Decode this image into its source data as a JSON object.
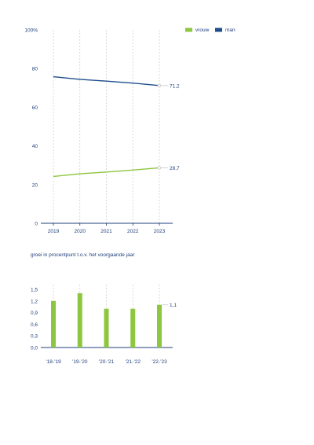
{
  "colors": {
    "vrouw": "#8dc63f",
    "man": "#1f4e8c",
    "text": "#1f3f7a",
    "grid": "#c8c8c8",
    "axis": "#1f3f7a"
  },
  "chart_data": [
    {
      "type": "line",
      "x": [
        "2019",
        "2020",
        "2021",
        "2022",
        "2023"
      ],
      "series": [
        {
          "name": "vrouw",
          "values": [
            24.2,
            25.6,
            26.5,
            27.5,
            28.7
          ]
        },
        {
          "name": "man",
          "values": [
            75.8,
            74.4,
            73.5,
            72.5,
            71.2
          ]
        }
      ],
      "y_ticks": [
        "0",
        "20",
        "40",
        "60",
        "80",
        "100%"
      ],
      "ylim": [
        0,
        100
      ],
      "end_labels": [
        "28,7",
        "71,2"
      ],
      "legend_position": "top-right",
      "grid": "vertical dashed"
    },
    {
      "type": "bar",
      "title": "groei in procentpunt t.o.v. het voorgaande jaar",
      "categories": [
        "’18-’19",
        "’19-’20",
        "’20-’21",
        "’21-’22",
        "’22-’23"
      ],
      "values": [
        1.2,
        1.4,
        1.0,
        1.0,
        1.1
      ],
      "y_ticks": [
        "0,0",
        "0,3",
        "0,6",
        "0,9",
        "1,2",
        "1,5"
      ],
      "ylim": [
        0,
        1.5
      ],
      "end_label": "1,1",
      "grid": "vertical dashed"
    }
  ]
}
